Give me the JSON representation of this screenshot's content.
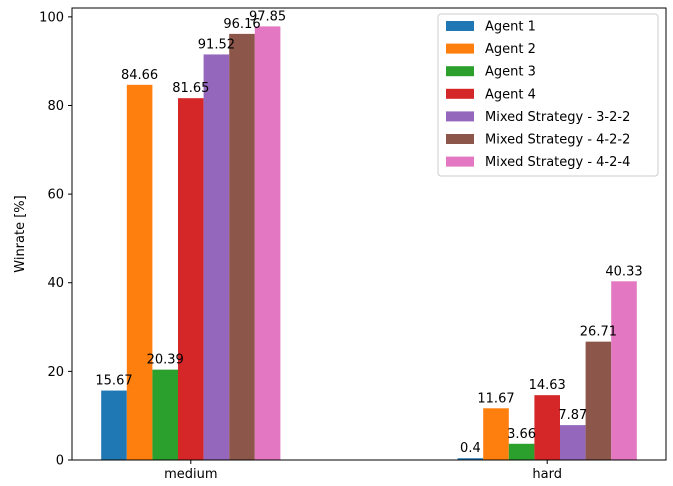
{
  "chart_data": {
    "type": "bar",
    "categories": [
      "medium",
      "hard"
    ],
    "ylabel": "Winrate [%]",
    "xlabel": "",
    "title": "",
    "ylim": [
      0,
      102
    ],
    "yticks": [
      0,
      20,
      40,
      60,
      80,
      100
    ],
    "grid": false,
    "legend": "top-right",
    "series": [
      {
        "name": "Agent 1",
        "color": "#1f77b4",
        "values": [
          15.67,
          0.4
        ],
        "labels": [
          "15.67",
          "0.4"
        ]
      },
      {
        "name": "Agent 2",
        "color": "#ff7f0e",
        "values": [
          84.66,
          11.67
        ],
        "labels": [
          "84.66",
          "11.67"
        ]
      },
      {
        "name": "Agent 3",
        "color": "#2ca02c",
        "values": [
          20.39,
          3.66
        ],
        "labels": [
          "20.39",
          "3.66"
        ]
      },
      {
        "name": "Agent 4",
        "color": "#d62728",
        "values": [
          81.65,
          14.63
        ],
        "labels": [
          "81.65",
          "14.63"
        ]
      },
      {
        "name": "Mixed Strategy - 3-2-2",
        "color": "#9467bd",
        "values": [
          91.52,
          7.87
        ],
        "labels": [
          "91.52",
          "7.87"
        ]
      },
      {
        "name": "Mixed Strategy - 4-2-2",
        "color": "#8c564b",
        "values": [
          96.16,
          26.71
        ],
        "labels": [
          "96.16",
          "26.71"
        ]
      },
      {
        "name": "Mixed Strategy - 4-2-4",
        "color": "#e377c2",
        "values": [
          97.85,
          40.33
        ],
        "labels": [
          "97.85",
          "40.33"
        ]
      }
    ]
  }
}
